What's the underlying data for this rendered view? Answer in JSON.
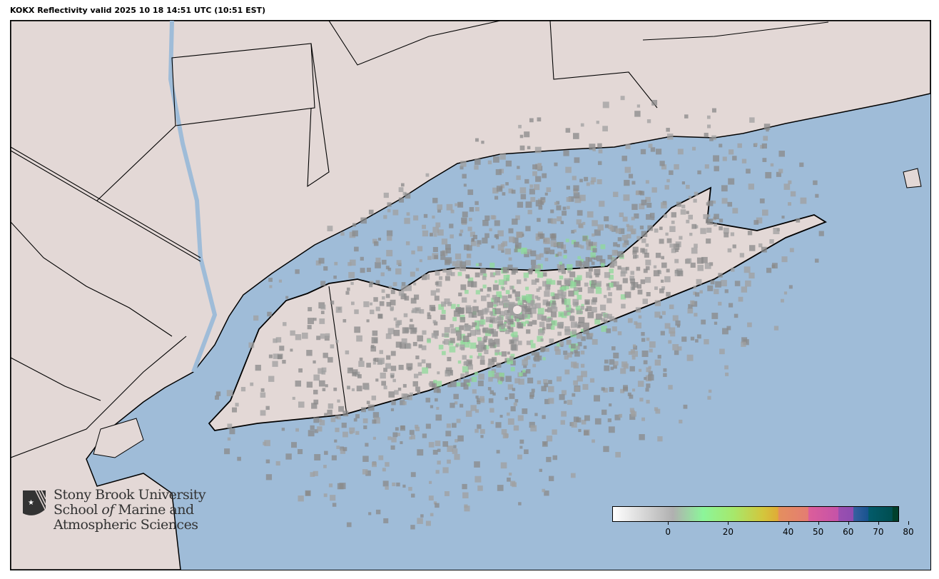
{
  "title": "KOKX Reflectivity valid 2025 10 18 14:51 UTC (10:51 EST)",
  "logo": {
    "line1": "Stony Brook University",
    "line2a": "School ",
    "line2b": "of",
    "line2c": " Marine and",
    "line3": "Atmospheric Sciences"
  },
  "colors": {
    "land": "#e3d8d6",
    "water": "#9fbcd8",
    "border": "#000000",
    "echo": "#8a8a8a"
  },
  "colorbar": {
    "min": -15,
    "max": 80,
    "ticks": [
      {
        "v": 0,
        "label": "0"
      },
      {
        "v": 20,
        "label": "20"
      },
      {
        "v": 40,
        "label": "40"
      },
      {
        "v": 50,
        "label": "50"
      },
      {
        "v": 60,
        "label": "60"
      },
      {
        "v": 70,
        "label": "70"
      },
      {
        "v": 80,
        "label": "80"
      }
    ],
    "stops": [
      {
        "v": -15,
        "c": "#ffffff"
      },
      {
        "v": 5,
        "c": "#b0b0b0"
      },
      {
        "v": 15,
        "c": "#8cf59a"
      },
      {
        "v": 25,
        "c": "#a6e86c"
      },
      {
        "v": 35,
        "c": "#d3c63c"
      },
      {
        "v": 40,
        "c": "#e0ab37"
      },
      {
        "v": 40.1,
        "c": "#e48f5e"
      },
      {
        "v": 50,
        "c": "#e47d72"
      },
      {
        "v": 50.1,
        "c": "#dc5e9a"
      },
      {
        "v": 60,
        "c": "#c553a8"
      },
      {
        "v": 60.1,
        "c": "#9b4fb0"
      },
      {
        "v": 65,
        "c": "#8e4cb0"
      },
      {
        "v": 65.1,
        "c": "#3760a0"
      },
      {
        "v": 70,
        "c": "#17538e"
      },
      {
        "v": 70.1,
        "c": "#035b6b"
      },
      {
        "v": 78,
        "c": "#004e50"
      },
      {
        "v": 78.1,
        "c": "#00402c"
      },
      {
        "v": 80,
        "c": "#00402c"
      }
    ]
  }
}
